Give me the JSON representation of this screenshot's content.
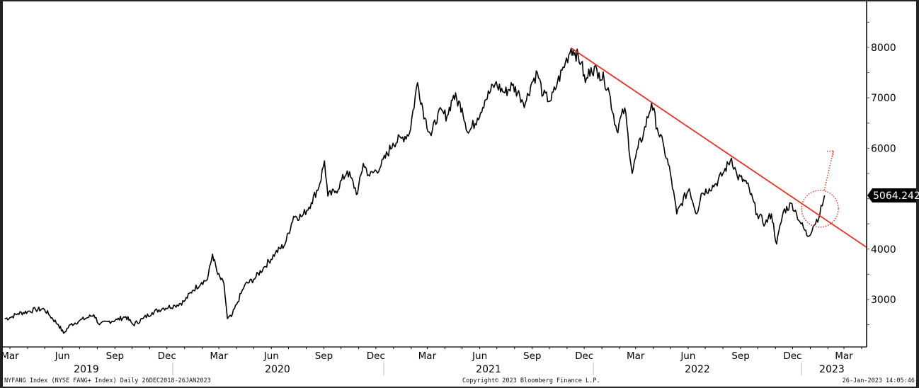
{
  "chart_data": {
    "type": "line",
    "title": "NYFANG Index (NYSE FANG+ Index)",
    "subtitle": "Daily 26DEC2018-26JAN2023",
    "xlabel": "",
    "ylabel": "",
    "y_axis_side": "right",
    "ylim": [
      2300,
      8900
    ],
    "y_ticks": [
      3000,
      4000,
      5000,
      6000,
      7000,
      8000
    ],
    "y_tick_labels": [
      "3000",
      "4000",
      "",
      "6000",
      "7000",
      "8000"
    ],
    "x_month_labels": [
      "Mar",
      "Jun",
      "Sep",
      "Dec",
      "Mar",
      "Jun",
      "Sep",
      "Dec",
      "Mar",
      "Jun",
      "Sep",
      "Dec",
      "Mar",
      "Jun",
      "Sep",
      "Dec",
      "Mar"
    ],
    "x_year_labels": [
      "2019",
      "2020",
      "2021",
      "2022",
      "2023"
    ],
    "grid": false,
    "last_value_label": "5064.242",
    "series": [
      {
        "name": "NYFANG Index",
        "color": "#000000",
        "points": [
          [
            "2019-02-20",
            2620
          ],
          [
            "2019-03-01",
            2640
          ],
          [
            "2019-03-15",
            2720
          ],
          [
            "2019-04-01",
            2760
          ],
          [
            "2019-04-15",
            2800
          ],
          [
            "2019-04-30",
            2810
          ],
          [
            "2019-05-10",
            2680
          ],
          [
            "2019-05-25",
            2500
          ],
          [
            "2019-06-03",
            2330
          ],
          [
            "2019-06-15",
            2500
          ],
          [
            "2019-07-01",
            2580
          ],
          [
            "2019-07-15",
            2640
          ],
          [
            "2019-07-26",
            2700
          ],
          [
            "2019-08-05",
            2500
          ],
          [
            "2019-08-20",
            2560
          ],
          [
            "2019-09-05",
            2600
          ],
          [
            "2019-09-20",
            2660
          ],
          [
            "2019-10-03",
            2500
          ],
          [
            "2019-10-20",
            2620
          ],
          [
            "2019-11-05",
            2740
          ],
          [
            "2019-11-25",
            2830
          ],
          [
            "2019-12-15",
            2880
          ],
          [
            "2019-12-31",
            2960
          ],
          [
            "2020-01-15",
            3180
          ],
          [
            "2020-01-31",
            3340
          ],
          [
            "2020-02-10",
            3400
          ],
          [
            "2020-02-19",
            3900
          ],
          [
            "2020-02-28",
            3500
          ],
          [
            "2020-03-10",
            3300
          ],
          [
            "2020-03-16",
            2620
          ],
          [
            "2020-03-23",
            2660
          ],
          [
            "2020-04-01",
            2900
          ],
          [
            "2020-04-15",
            3280
          ],
          [
            "2020-05-01",
            3400
          ],
          [
            "2020-05-20",
            3650
          ],
          [
            "2020-06-08",
            3920
          ],
          [
            "2020-06-25",
            4100
          ],
          [
            "2020-07-10",
            4650
          ],
          [
            "2020-07-25",
            4650
          ],
          [
            "2020-08-10",
            4920
          ],
          [
            "2020-08-25",
            5300
          ],
          [
            "2020-09-02",
            5750
          ],
          [
            "2020-09-08",
            5050
          ],
          [
            "2020-09-22",
            5150
          ],
          [
            "2020-10-12",
            5550
          ],
          [
            "2020-10-30",
            5100
          ],
          [
            "2020-11-09",
            5700
          ],
          [
            "2020-11-20",
            5450
          ],
          [
            "2020-12-10",
            5650
          ],
          [
            "2020-12-31",
            6100
          ],
          [
            "2021-01-15",
            6200
          ],
          [
            "2021-01-29",
            6300
          ],
          [
            "2021-02-12",
            7300
          ],
          [
            "2021-02-25",
            6600
          ],
          [
            "2021-03-08",
            6250
          ],
          [
            "2021-03-20",
            6700
          ],
          [
            "2021-04-05",
            6650
          ],
          [
            "2021-04-16",
            7050
          ],
          [
            "2021-05-01",
            6800
          ],
          [
            "2021-05-12",
            6300
          ],
          [
            "2021-05-28",
            6600
          ],
          [
            "2021-06-10",
            6950
          ],
          [
            "2021-06-28",
            7280
          ],
          [
            "2021-07-15",
            7100
          ],
          [
            "2021-07-28",
            7250
          ],
          [
            "2021-08-10",
            7050
          ],
          [
            "2021-08-20",
            6900
          ],
          [
            "2021-08-31",
            7300
          ],
          [
            "2021-09-10",
            7500
          ],
          [
            "2021-09-20",
            7050
          ],
          [
            "2021-10-04",
            6950
          ],
          [
            "2021-10-15",
            7300
          ],
          [
            "2021-10-29",
            7700
          ],
          [
            "2021-11-08",
            7980
          ],
          [
            "2021-11-15",
            7900
          ],
          [
            "2021-11-26",
            7700
          ],
          [
            "2021-12-03",
            7300
          ],
          [
            "2021-12-13",
            7600
          ],
          [
            "2021-12-27",
            7500
          ],
          [
            "2022-01-05",
            7350
          ],
          [
            "2022-01-12",
            7200
          ],
          [
            "2022-01-27",
            6350
          ],
          [
            "2022-02-10",
            6800
          ],
          [
            "2022-02-23",
            5500
          ],
          [
            "2022-03-05",
            6000
          ],
          [
            "2022-03-15",
            6300
          ],
          [
            "2022-03-29",
            6900
          ],
          [
            "2022-04-08",
            6400
          ],
          [
            "2022-04-20",
            6000
          ],
          [
            "2022-05-01",
            5500
          ],
          [
            "2022-05-12",
            4700
          ],
          [
            "2022-05-20",
            4900
          ],
          [
            "2022-06-03",
            5200
          ],
          [
            "2022-06-16",
            4700
          ],
          [
            "2022-06-24",
            5100
          ],
          [
            "2022-07-08",
            5200
          ],
          [
            "2022-07-20",
            5300
          ],
          [
            "2022-08-01",
            5500
          ],
          [
            "2022-08-16",
            5800
          ],
          [
            "2022-08-26",
            5450
          ],
          [
            "2022-09-12",
            5300
          ],
          [
            "2022-09-30",
            4700
          ],
          [
            "2022-10-14",
            4500
          ],
          [
            "2022-10-25",
            4700
          ],
          [
            "2022-11-03",
            4100
          ],
          [
            "2022-11-15",
            4750
          ],
          [
            "2022-11-30",
            4900
          ],
          [
            "2022-12-08",
            4700
          ],
          [
            "2022-12-16",
            4500
          ],
          [
            "2022-12-28",
            4250
          ],
          [
            "2023-01-06",
            4450
          ],
          [
            "2023-01-18",
            4700
          ],
          [
            "2023-01-26",
            5064.242
          ]
        ]
      },
      {
        "name": "Downtrend line",
        "color": "#e8311f",
        "points": [
          [
            "2021-11-08",
            7990
          ],
          [
            "2023-04-30",
            3880
          ]
        ]
      }
    ],
    "annotations": [
      {
        "type": "dotted-circle",
        "color": "#e8311f",
        "center_date": "2023-01-18",
        "center_value": 4800
      },
      {
        "type": "dotted-arrow",
        "color": "#e8311f",
        "direction": "up-right",
        "target_value": 5950
      }
    ]
  },
  "footer": {
    "left": "NYFANG Index (NYSE FANG+ Index)  Daily 26DEC2018-26JAN2023",
    "center": "Copyright© 2023 Bloomberg Finance L.P.",
    "right": "26-Jan-2023 14:05:46"
  }
}
